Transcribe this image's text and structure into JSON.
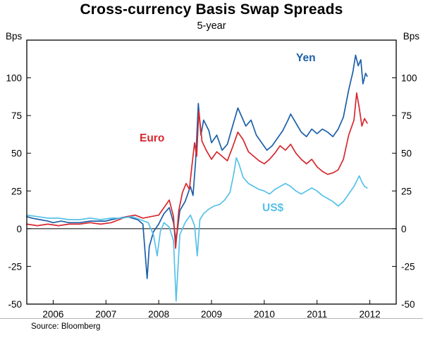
{
  "header": {
    "title": "Cross-currency Basis Swap Spreads",
    "subtitle": "5-year"
  },
  "footer": {
    "source": "Source: Bloomberg"
  },
  "chart_data": {
    "type": "line",
    "title": "Cross-currency Basis Swap Spreads",
    "subtitle": "5-year",
    "ylabel": "Bps",
    "ylabel_right": "Bps",
    "ylim": [
      -50,
      125
    ],
    "yticks": [
      -50,
      -25,
      0,
      25,
      50,
      75,
      100
    ],
    "xlim": [
      2005.5,
      2012.5
    ],
    "xticks": [
      2006,
      2007,
      2008,
      2009,
      2010,
      2011,
      2012
    ],
    "grid": false,
    "zero_line": true,
    "legend_position": "inline-annotations",
    "axis_color": "#000000",
    "series": [
      {
        "name": "Yen",
        "color": "#1b5fa8",
        "points": [
          [
            2005.5,
            8
          ],
          [
            2005.6,
            7
          ],
          [
            2005.75,
            6
          ],
          [
            2005.9,
            5
          ],
          [
            2006.0,
            4
          ],
          [
            2006.15,
            5
          ],
          [
            2006.3,
            4
          ],
          [
            2006.5,
            4
          ],
          [
            2006.7,
            5
          ],
          [
            2006.9,
            5
          ],
          [
            2007.0,
            5
          ],
          [
            2007.1,
            6
          ],
          [
            2007.25,
            7
          ],
          [
            2007.4,
            8
          ],
          [
            2007.5,
            7
          ],
          [
            2007.6,
            6
          ],
          [
            2007.7,
            3
          ],
          [
            2007.78,
            -33
          ],
          [
            2007.82,
            -12
          ],
          [
            2007.9,
            -2
          ],
          [
            2008.0,
            3
          ],
          [
            2008.1,
            10
          ],
          [
            2008.2,
            14
          ],
          [
            2008.28,
            4
          ],
          [
            2008.33,
            -8
          ],
          [
            2008.4,
            12
          ],
          [
            2008.5,
            18
          ],
          [
            2008.6,
            28
          ],
          [
            2008.65,
            22
          ],
          [
            2008.7,
            45
          ],
          [
            2008.75,
            83
          ],
          [
            2008.8,
            62
          ],
          [
            2008.85,
            72
          ],
          [
            2008.95,
            65
          ],
          [
            2009.0,
            57
          ],
          [
            2009.1,
            62
          ],
          [
            2009.2,
            52
          ],
          [
            2009.3,
            56
          ],
          [
            2009.4,
            68
          ],
          [
            2009.5,
            80
          ],
          [
            2009.55,
            76
          ],
          [
            2009.65,
            68
          ],
          [
            2009.75,
            72
          ],
          [
            2009.85,
            62
          ],
          [
            2009.95,
            57
          ],
          [
            2010.05,
            52
          ],
          [
            2010.15,
            55
          ],
          [
            2010.25,
            60
          ],
          [
            2010.35,
            65
          ],
          [
            2010.45,
            72
          ],
          [
            2010.5,
            76
          ],
          [
            2010.6,
            70
          ],
          [
            2010.7,
            64
          ],
          [
            2010.8,
            61
          ],
          [
            2010.9,
            66
          ],
          [
            2011.0,
            63
          ],
          [
            2011.1,
            66
          ],
          [
            2011.2,
            64
          ],
          [
            2011.3,
            61
          ],
          [
            2011.4,
            66
          ],
          [
            2011.5,
            74
          ],
          [
            2011.6,
            92
          ],
          [
            2011.68,
            104
          ],
          [
            2011.73,
            115
          ],
          [
            2011.78,
            108
          ],
          [
            2011.83,
            112
          ],
          [
            2011.87,
            96
          ],
          [
            2011.92,
            103
          ],
          [
            2011.95,
            101
          ]
        ]
      },
      {
        "name": "Euro",
        "color": "#d7272e",
        "points": [
          [
            2005.5,
            3
          ],
          [
            2005.7,
            2
          ],
          [
            2005.9,
            3
          ],
          [
            2006.1,
            2
          ],
          [
            2006.3,
            3
          ],
          [
            2006.5,
            3
          ],
          [
            2006.7,
            4
          ],
          [
            2006.9,
            3
          ],
          [
            2007.1,
            4
          ],
          [
            2007.25,
            6
          ],
          [
            2007.4,
            8
          ],
          [
            2007.55,
            9
          ],
          [
            2007.7,
            7
          ],
          [
            2007.85,
            8
          ],
          [
            2008.0,
            9
          ],
          [
            2008.1,
            14
          ],
          [
            2008.2,
            19
          ],
          [
            2008.28,
            8
          ],
          [
            2008.32,
            -13
          ],
          [
            2008.38,
            12
          ],
          [
            2008.45,
            24
          ],
          [
            2008.52,
            30
          ],
          [
            2008.58,
            26
          ],
          [
            2008.63,
            42
          ],
          [
            2008.68,
            57
          ],
          [
            2008.72,
            48
          ],
          [
            2008.76,
            78
          ],
          [
            2008.82,
            58
          ],
          [
            2008.9,
            52
          ],
          [
            2009.0,
            46
          ],
          [
            2009.1,
            51
          ],
          [
            2009.2,
            48
          ],
          [
            2009.3,
            45
          ],
          [
            2009.4,
            54
          ],
          [
            2009.5,
            64
          ],
          [
            2009.6,
            59
          ],
          [
            2009.7,
            51
          ],
          [
            2009.8,
            48
          ],
          [
            2009.9,
            45
          ],
          [
            2010.0,
            43
          ],
          [
            2010.1,
            46
          ],
          [
            2010.2,
            50
          ],
          [
            2010.3,
            55
          ],
          [
            2010.4,
            52
          ],
          [
            2010.5,
            56
          ],
          [
            2010.6,
            50
          ],
          [
            2010.7,
            46
          ],
          [
            2010.8,
            43
          ],
          [
            2010.9,
            46
          ],
          [
            2011.0,
            41
          ],
          [
            2011.1,
            38
          ],
          [
            2011.2,
            36
          ],
          [
            2011.3,
            37
          ],
          [
            2011.4,
            39
          ],
          [
            2011.5,
            46
          ],
          [
            2011.6,
            62
          ],
          [
            2011.7,
            72
          ],
          [
            2011.75,
            90
          ],
          [
            2011.8,
            80
          ],
          [
            2011.85,
            68
          ],
          [
            2011.9,
            73
          ],
          [
            2011.95,
            70
          ]
        ]
      },
      {
        "name": "US$",
        "color": "#56c1e8",
        "points": [
          [
            2005.5,
            9
          ],
          [
            2005.7,
            8
          ],
          [
            2005.9,
            7
          ],
          [
            2006.1,
            7
          ],
          [
            2006.3,
            6
          ],
          [
            2006.5,
            6
          ],
          [
            2006.7,
            7
          ],
          [
            2006.9,
            6
          ],
          [
            2007.1,
            7
          ],
          [
            2007.3,
            7
          ],
          [
            2007.5,
            8
          ],
          [
            2007.65,
            6
          ],
          [
            2007.8,
            4
          ],
          [
            2007.9,
            -4
          ],
          [
            2007.97,
            -18
          ],
          [
            2008.03,
            -2
          ],
          [
            2008.1,
            4
          ],
          [
            2008.2,
            1
          ],
          [
            2008.28,
            -8
          ],
          [
            2008.33,
            -48
          ],
          [
            2008.4,
            -4
          ],
          [
            2008.5,
            4
          ],
          [
            2008.6,
            9
          ],
          [
            2008.68,
            2
          ],
          [
            2008.73,
            -18
          ],
          [
            2008.78,
            6
          ],
          [
            2008.85,
            10
          ],
          [
            2008.95,
            13
          ],
          [
            2009.05,
            15
          ],
          [
            2009.15,
            16
          ],
          [
            2009.25,
            19
          ],
          [
            2009.35,
            24
          ],
          [
            2009.42,
            36
          ],
          [
            2009.47,
            47
          ],
          [
            2009.52,
            43
          ],
          [
            2009.6,
            34
          ],
          [
            2009.7,
            30
          ],
          [
            2009.8,
            28
          ],
          [
            2009.9,
            26
          ],
          [
            2010.0,
            25
          ],
          [
            2010.1,
            23
          ],
          [
            2010.2,
            26
          ],
          [
            2010.3,
            28
          ],
          [
            2010.4,
            30
          ],
          [
            2010.5,
            28
          ],
          [
            2010.6,
            25
          ],
          [
            2010.7,
            23
          ],
          [
            2010.8,
            25
          ],
          [
            2010.9,
            27
          ],
          [
            2011.0,
            25
          ],
          [
            2011.1,
            22
          ],
          [
            2011.2,
            20
          ],
          [
            2011.3,
            18
          ],
          [
            2011.4,
            15
          ],
          [
            2011.5,
            18
          ],
          [
            2011.6,
            23
          ],
          [
            2011.7,
            28
          ],
          [
            2011.8,
            35
          ],
          [
            2011.85,
            31
          ],
          [
            2011.9,
            28
          ],
          [
            2011.95,
            27
          ]
        ]
      }
    ]
  }
}
